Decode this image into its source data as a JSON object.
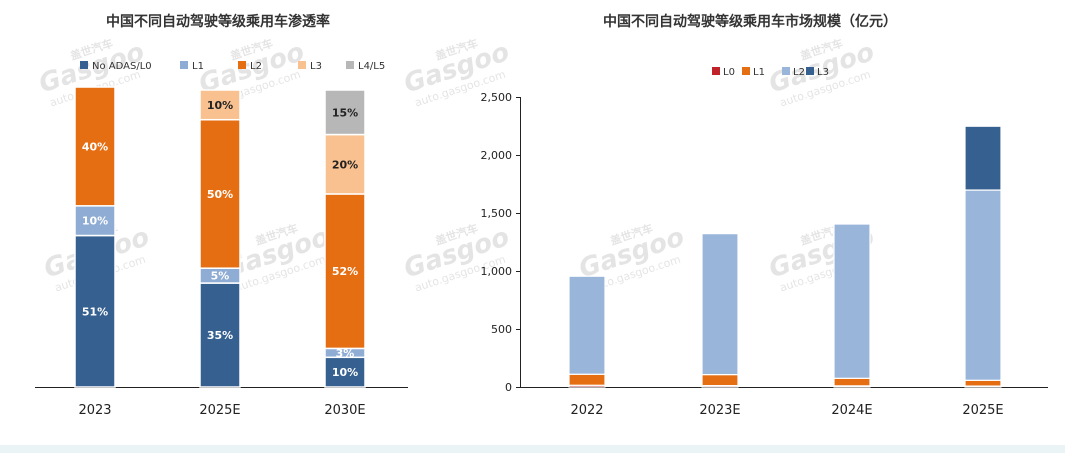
{
  "watermark": {
    "brand_cn": "盖世汽车",
    "brand_en": "Gasgoo",
    "url": "auto.gasgoo.com"
  },
  "chart_data": [
    {
      "type": "bar",
      "stacked": true,
      "percent": true,
      "title": "中国不同自动驾驶等级乘用车渗透率",
      "legend_position": "top",
      "categories": [
        "2023",
        "2025E",
        "2030E"
      ],
      "ylim": [
        0,
        100
      ],
      "grid": false,
      "series": [
        {
          "name": "No ADAS/L0",
          "color": "#35608f",
          "values": [
            51,
            35,
            10
          ],
          "labels": [
            "51%",
            "35%",
            "10%"
          ]
        },
        {
          "name": "L1",
          "color": "#8fadd4",
          "values": [
            10,
            5,
            3
          ],
          "labels": [
            "10%",
            "5%",
            "3%"
          ]
        },
        {
          "name": "L2",
          "color": "#e56e12",
          "values": [
            40,
            50,
            52
          ],
          "labels": [
            "40%",
            "50%",
            "52%"
          ]
        },
        {
          "name": "L3",
          "color": "#f8c18f",
          "values": [
            0,
            10,
            20
          ],
          "labels": [
            "",
            "10%",
            "20%"
          ]
        },
        {
          "name": "L4/L5",
          "color": "#b7b7b7",
          "values": [
            0,
            0,
            15
          ],
          "labels": [
            "",
            "",
            "15%"
          ]
        }
      ]
    },
    {
      "type": "bar",
      "stacked": true,
      "title": "中国不同自动驾驶等级乘用车市场规模（亿元）",
      "legend_position": "top",
      "categories": [
        "2022",
        "2023E",
        "2024E",
        "2025E"
      ],
      "ylim": [
        0,
        2500
      ],
      "yticks": [
        0,
        500,
        1000,
        1500,
        2000,
        2500
      ],
      "ytick_labels": [
        "0",
        "500",
        "1,000",
        "1,500",
        "2,000",
        "2,500"
      ],
      "grid": false,
      "series": [
        {
          "name": "L0",
          "color": "#c0222a",
          "values": [
            15,
            12,
            10,
            8
          ]
        },
        {
          "name": "L1",
          "color": "#e56e12",
          "values": [
            95,
            95,
            65,
            50
          ]
        },
        {
          "name": "L2",
          "color": "#99b5d9",
          "values": [
            845,
            1215,
            1330,
            1640
          ]
        },
        {
          "name": "L3",
          "color": "#35608f",
          "values": [
            0,
            0,
            0,
            550
          ]
        }
      ]
    }
  ]
}
